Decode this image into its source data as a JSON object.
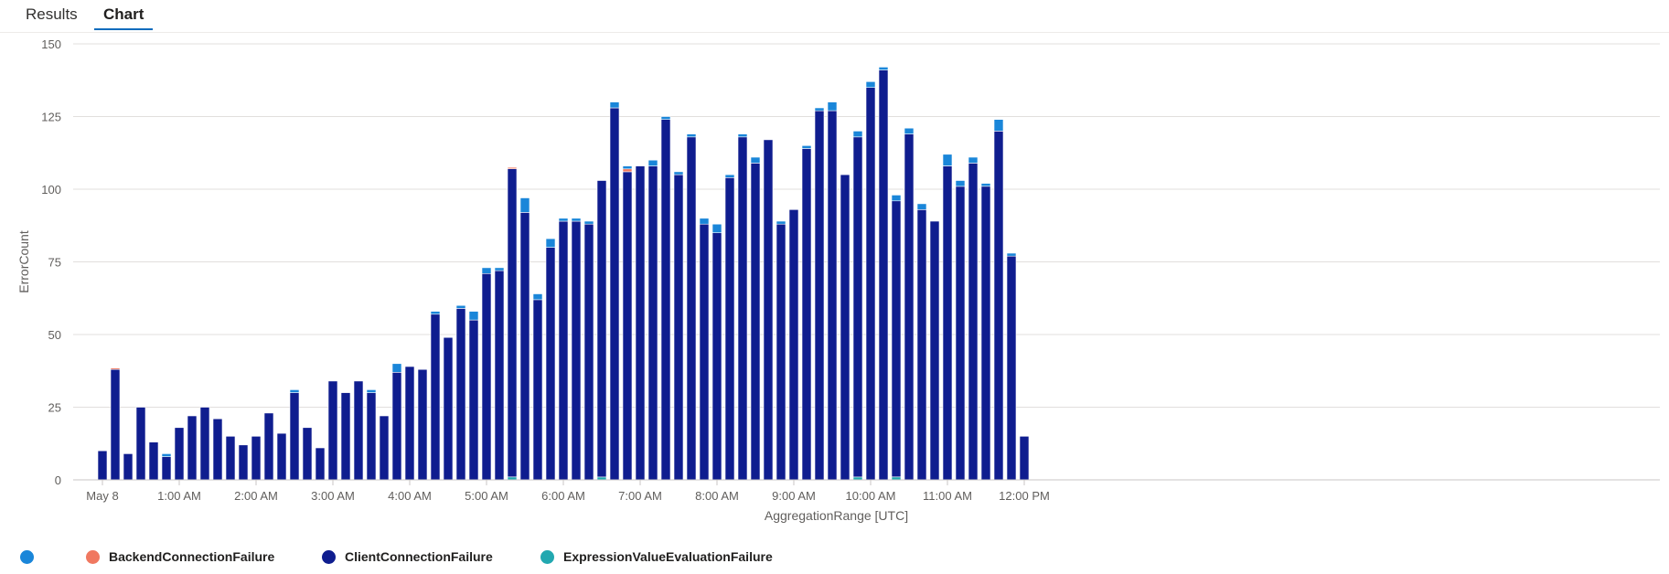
{
  "tabs": {
    "results": "Results",
    "chart": "Chart",
    "active": "Chart"
  },
  "colors": {
    "unnamed": "#1a86d9",
    "BackendConnectionFailure": "#f07860",
    "ClientConnectionFailure": "#0f1d8f",
    "ExpressionValueEvaluationFailure": "#22a8b0",
    "grid": "#e1dfdd",
    "accent": "#0f6cbd"
  },
  "legend": [
    {
      "name": "",
      "color": "#1a86d9"
    },
    {
      "name": "BackendConnectionFailure",
      "color": "#f07860"
    },
    {
      "name": "ClientConnectionFailure",
      "color": "#0f1d8f"
    },
    {
      "name": "ExpressionValueEvaluationFailure",
      "color": "#22a8b0"
    }
  ],
  "chart_data": {
    "type": "bar",
    "stacked": true,
    "xlabel": "AggregationRange [UTC]",
    "ylabel": "ErrorCount",
    "ylim": [
      0,
      150
    ],
    "yticks": [
      0,
      25,
      50,
      75,
      100,
      125,
      150
    ],
    "x_interval_minutes": 10,
    "x_start": "May 8 00:00",
    "xtick_labels": [
      "May 8",
      "1:00 AM",
      "2:00 AM",
      "3:00 AM",
      "4:00 AM",
      "5:00 AM",
      "6:00 AM",
      "7:00 AM",
      "8:00 AM",
      "9:00 AM",
      "10:00 AM",
      "11:00 AM",
      "12:00 PM"
    ],
    "xtick_positions": [
      0,
      6,
      12,
      18,
      24,
      30,
      36,
      42,
      48,
      54,
      60,
      66,
      72
    ],
    "grid": true,
    "legend_position": "bottom-left",
    "categories": [
      "00:00",
      "00:10",
      "00:20",
      "00:30",
      "00:40",
      "00:50",
      "01:00",
      "01:10",
      "01:20",
      "01:30",
      "01:40",
      "01:50",
      "02:00",
      "02:10",
      "02:20",
      "02:30",
      "02:40",
      "02:50",
      "03:00",
      "03:10",
      "03:20",
      "03:30",
      "03:40",
      "03:50",
      "04:00",
      "04:10",
      "04:20",
      "04:30",
      "04:40",
      "04:50",
      "05:00",
      "05:10",
      "05:20",
      "05:30",
      "05:40",
      "05:50",
      "06:00",
      "06:10",
      "06:20",
      "06:30",
      "06:40",
      "06:50",
      "07:00",
      "07:10",
      "07:20",
      "07:30",
      "07:40",
      "07:50",
      "08:00",
      "08:10",
      "08:20",
      "08:30",
      "08:40",
      "08:50",
      "09:00",
      "09:10",
      "09:20",
      "09:30",
      "09:40",
      "09:50",
      "10:00",
      "10:10",
      "10:20",
      "10:30",
      "10:40",
      "10:50",
      "11:00",
      "11:10",
      "11:20",
      "11:30",
      "11:40",
      "11:50",
      "12:00"
    ],
    "series": [
      {
        "name": "ExpressionValueEvaluationFailure",
        "values": [
          0,
          0,
          0,
          0,
          0,
          0,
          0,
          0,
          0,
          0,
          0,
          0,
          0,
          0,
          0,
          0,
          0,
          0,
          0,
          0,
          0,
          0,
          0,
          0,
          0,
          0,
          0,
          0,
          0,
          0,
          0,
          0,
          1,
          0,
          0,
          0,
          0,
          0,
          0,
          1,
          0,
          0,
          0,
          0,
          0,
          0,
          0,
          0,
          0,
          0,
          0,
          0,
          0,
          0,
          0,
          0,
          0,
          0,
          0,
          1,
          0,
          0,
          1,
          0,
          0,
          0,
          0,
          0,
          0,
          0,
          0,
          0,
          0
        ]
      },
      {
        "name": "ClientConnectionFailure",
        "values": [
          10,
          38,
          9,
          25,
          13,
          8,
          18,
          22,
          25,
          21,
          15,
          12,
          15,
          23,
          16,
          30,
          18,
          11,
          34,
          30,
          34,
          30,
          22,
          37,
          39,
          38,
          57,
          49,
          59,
          55,
          71,
          72,
          106,
          92,
          62,
          80,
          89,
          89,
          88,
          102,
          128,
          106,
          108,
          108,
          124,
          105,
          118,
          88,
          85,
          104,
          118,
          109,
          117,
          88,
          93,
          114,
          127,
          127,
          105,
          117,
          135,
          141,
          95,
          119,
          93,
          89,
          108,
          101,
          109,
          101,
          120,
          77,
          15
        ]
      },
      {
        "name": "BackendConnectionFailure",
        "values": [
          0,
          0.5,
          0,
          0,
          0,
          0,
          0,
          0,
          0,
          0,
          0,
          0,
          0,
          0,
          0,
          0,
          0,
          0,
          0,
          0,
          0,
          0,
          0,
          0,
          0,
          0,
          0,
          0,
          0,
          0,
          0,
          0,
          0.5,
          0,
          0,
          0,
          0,
          0,
          0,
          0,
          0,
          1,
          0,
          0,
          0,
          0,
          0,
          0,
          0,
          0,
          0,
          0,
          0,
          0,
          0,
          0,
          0,
          0,
          0,
          0,
          0,
          0,
          0,
          0,
          0,
          0,
          0,
          0,
          0,
          0,
          0,
          0,
          0
        ]
      },
      {
        "name": "",
        "values": [
          0,
          0,
          0,
          0,
          0,
          1,
          0,
          0,
          0,
          0,
          0,
          0,
          0,
          0,
          0,
          1,
          0,
          0,
          0,
          0,
          0,
          1,
          0,
          3,
          0,
          0,
          1,
          0,
          1,
          3,
          2,
          1,
          0,
          5,
          2,
          3,
          1,
          1,
          1,
          0,
          2,
          1,
          0,
          2,
          1,
          1,
          1,
          2,
          3,
          1,
          1,
          2,
          0,
          1,
          0,
          1,
          1,
          3,
          0,
          2,
          2,
          1,
          2,
          2,
          2,
          0,
          4,
          2,
          2,
          1,
          4,
          1,
          0
        ]
      }
    ]
  }
}
